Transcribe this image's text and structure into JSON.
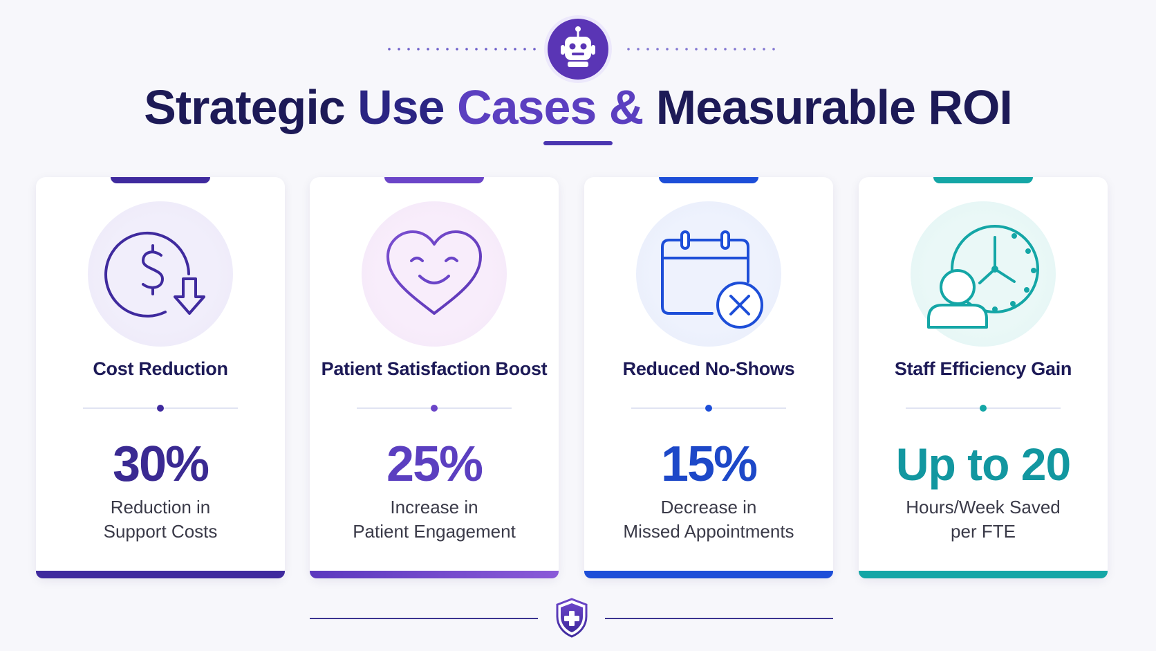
{
  "header": {
    "title_parts": [
      "Strategic",
      "Use",
      "Cases",
      "&",
      "Measurable ROI"
    ],
    "icon": "robot-icon"
  },
  "colors": {
    "navy": "#1d1a57",
    "purple": "#3f2a9e",
    "violet": "#6b45c8",
    "blue": "#1d4ed8",
    "teal": "#14a6a6"
  },
  "cards": [
    {
      "title": "Cost Reduction",
      "metric": "30%",
      "desc_line1": "Reduction in",
      "desc_line2": "Support Costs",
      "icon": "dollar-down-arrow-icon",
      "accent": "#3f2a9e"
    },
    {
      "title": "Patient Satisfaction Boost",
      "metric": "25%",
      "desc_line1": "Increase in",
      "desc_line2": "Patient Engagement",
      "icon": "smiling-heart-icon",
      "accent": "#6b45c8"
    },
    {
      "title": "Reduced No-Shows",
      "metric": "15%",
      "desc_line1": "Decrease in",
      "desc_line2": "Missed Appointments",
      "icon": "calendar-cancel-icon",
      "accent": "#1d4ed8"
    },
    {
      "title": "Staff Efficiency Gain",
      "metric": "Up to 20",
      "desc_line1": "Hours/Week Saved",
      "desc_line2": "per FTE",
      "icon": "person-clock-icon",
      "accent": "#14a6a6"
    }
  ],
  "footer": {
    "icon": "medical-shield-icon"
  }
}
